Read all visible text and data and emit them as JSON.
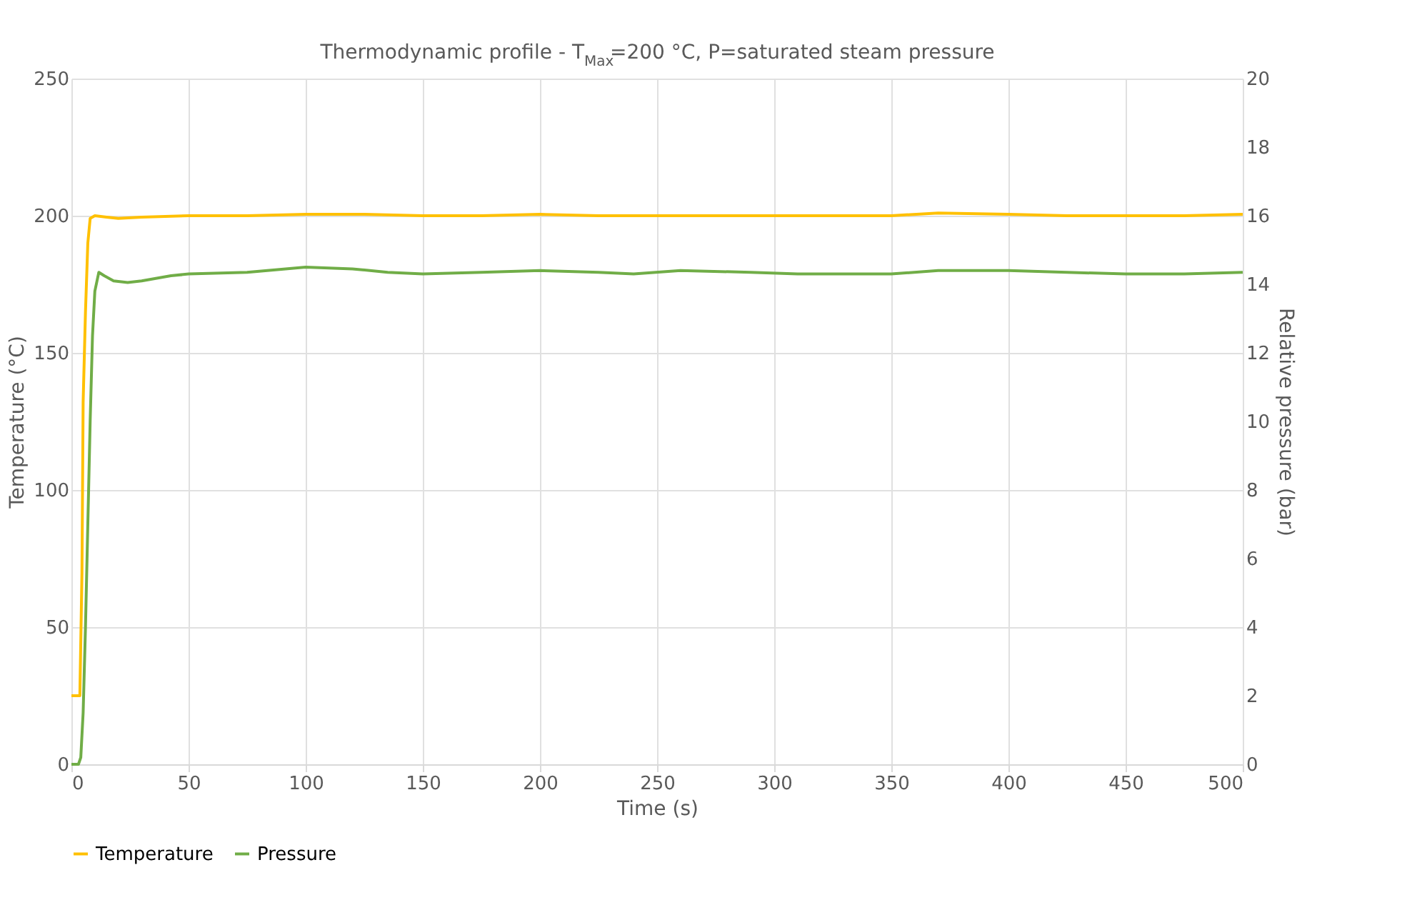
{
  "chart_data": {
    "type": "line",
    "title": "Thermodynamic profile - T$_{Max}$=200 °C, P=saturated steam pressure",
    "xlabel": "Time (s)",
    "ylabel": "Temperature (°C)",
    "y2label": "Relative pressure (bar)",
    "series": [
      {
        "name": "Temperature",
        "color": "#ffc000",
        "x": [
          0,
          3.6,
          4.5,
          5,
          6,
          7,
          8,
          10,
          15,
          20,
          30,
          50,
          75,
          100,
          125,
          150,
          175,
          200,
          225,
          250,
          275,
          300,
          325,
          350,
          370,
          400,
          425,
          450,
          475,
          500
        ],
        "values": [
          25,
          25,
          70,
          132,
          165,
          190,
          199,
          200,
          199.5,
          199,
          199.5,
          200,
          200,
          200.5,
          200.5,
          200,
          200,
          200.5,
          200,
          200,
          200,
          200,
          200,
          200,
          201,
          200.5,
          200,
          200,
          200,
          200.5
        ]
      },
      {
        "name": "Pressure",
        "color": "#70ad47",
        "axis": "y2",
        "x": [
          0,
          3,
          4,
          5,
          6,
          7,
          8,
          9,
          10,
          11.7,
          14,
          18,
          24,
          30,
          42.5,
          50,
          75,
          100,
          120,
          135,
          150,
          175,
          200,
          225,
          240,
          260,
          290,
          310,
          350,
          370,
          400,
          425,
          450,
          475,
          500
        ],
        "values": [
          0,
          0,
          0.2,
          1.5,
          4,
          7,
          10,
          12.5,
          13.8,
          14.35,
          14.25,
          14.1,
          14.05,
          14.1,
          14.25,
          14.3,
          14.35,
          14.5,
          14.45,
          14.35,
          14.3,
          14.35,
          14.4,
          14.35,
          14.3,
          14.4,
          14.35,
          14.3,
          14.3,
          14.4,
          14.4,
          14.35,
          14.3,
          14.3,
          14.35
        ]
      }
    ],
    "xlim": [
      0,
      500
    ],
    "xticks": [
      0,
      50,
      100,
      150,
      200,
      250,
      300,
      350,
      400,
      450,
      500
    ],
    "ylim": [
      0,
      250
    ],
    "yticks": [
      0,
      50,
      100,
      150,
      200,
      250
    ],
    "y2lim": [
      0,
      20
    ],
    "y2ticks": [
      0,
      2,
      4,
      6,
      8,
      10,
      12,
      14,
      16,
      18,
      20
    ],
    "grid": true,
    "legend": "bottom",
    "line_style": "solid",
    "marker": "none"
  }
}
